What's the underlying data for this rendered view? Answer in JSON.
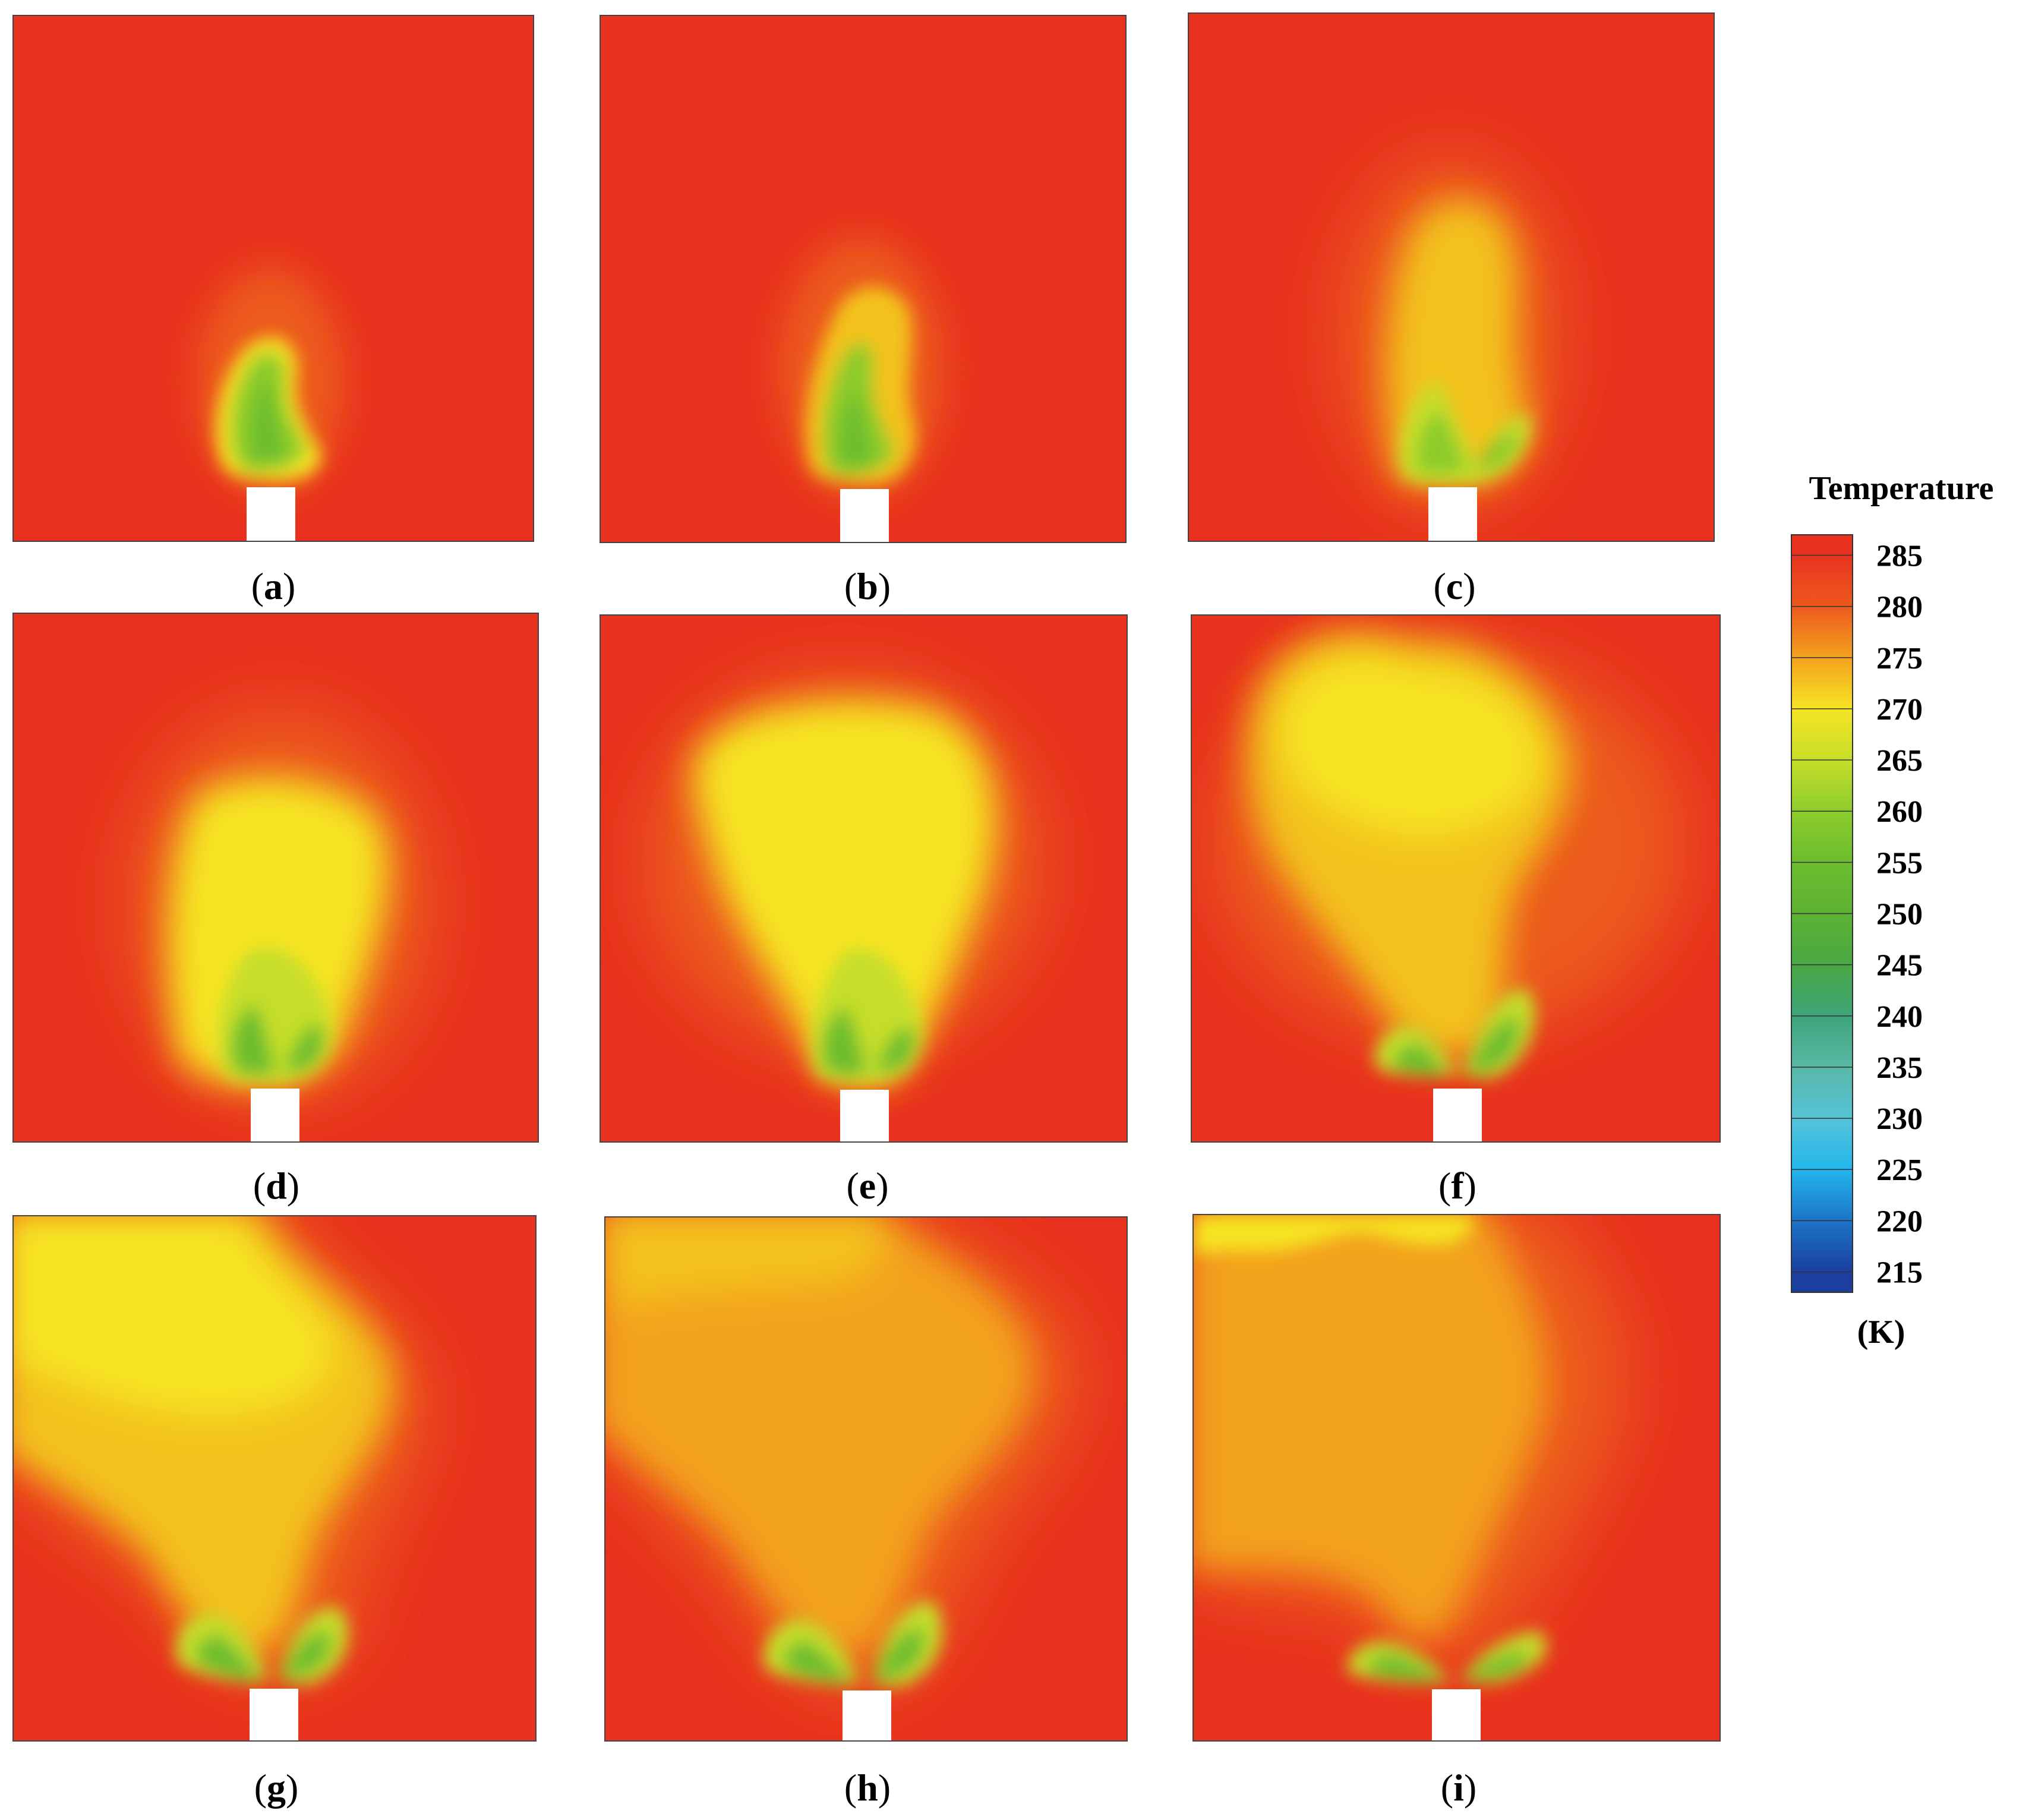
{
  "figure": {
    "panels": [
      {
        "id": "a",
        "label_open": "(",
        "label_letter": "a",
        "label_close": ")"
      },
      {
        "id": "b",
        "label_open": "(",
        "label_letter": "b",
        "label_close": ")"
      },
      {
        "id": "c",
        "label_open": "(",
        "label_letter": "c",
        "label_close": ")"
      },
      {
        "id": "d",
        "label_open": "(",
        "label_letter": "d",
        "label_close": ")"
      },
      {
        "id": "e",
        "label_open": "(",
        "label_letter": "e",
        "label_close": ")"
      },
      {
        "id": "f",
        "label_open": "(",
        "label_letter": "f",
        "label_close": ")"
      },
      {
        "id": "g",
        "label_open": "(",
        "label_letter": "g",
        "label_close": ")"
      },
      {
        "id": "h",
        "label_open": "(",
        "label_letter": "h",
        "label_close": ")"
      },
      {
        "id": "i",
        "label_open": "(",
        "label_letter": "i",
        "label_close": ")"
      }
    ]
  },
  "colorbar": {
    "title": "Temperature",
    "unit": "(K)",
    "ticks": [
      "285",
      "280",
      "275",
      "270",
      "265",
      "260",
      "255",
      "250",
      "245",
      "240",
      "235",
      "230",
      "225",
      "220",
      "215"
    ],
    "colors": {
      "285": "#e8321e",
      "280": "#ec5a1e",
      "275": "#f3a21e",
      "270": "#f6e424",
      "265": "#c6de2a",
      "260": "#8ccc2c",
      "255": "#6cbd2e",
      "250": "#5db233",
      "245": "#49a844",
      "240": "#3ea57a",
      "235": "#58b8a6",
      "230": "#56c3d8",
      "225": "#22b6ec",
      "220": "#1c74c8",
      "215": "#1a3f9e"
    }
  },
  "chart_data": {
    "type": "heatmap",
    "title": "",
    "quantity": "Temperature",
    "unit": "K",
    "colorbar_range": [
      213,
      287
    ],
    "panels": [
      {
        "id": "a",
        "plume_extent": "small, near nozzle",
        "min_temp_k": 250
      },
      {
        "id": "b",
        "plume_extent": "small, slightly taller",
        "min_temp_k": 250
      },
      {
        "id": "c",
        "plume_extent": "medium, rising",
        "min_temp_k": 255
      },
      {
        "id": "d",
        "plume_extent": "large, central column",
        "min_temp_k": 255
      },
      {
        "id": "e",
        "plume_extent": "large, spreading near top",
        "min_temp_k": 255
      },
      {
        "id": "f",
        "plume_extent": "detached cloud at top, split jet at nozzle",
        "min_temp_k": 258
      },
      {
        "id": "g",
        "plume_extent": "cloud fills upper-left, split jet at nozzle",
        "min_temp_k": 258
      },
      {
        "id": "h",
        "plume_extent": "warming cloud, split jet at nozzle",
        "min_temp_k": 260
      },
      {
        "id": "i",
        "plume_extent": "diffuse warm cloud, flat split jet at nozzle",
        "min_temp_k": 262
      }
    ]
  }
}
